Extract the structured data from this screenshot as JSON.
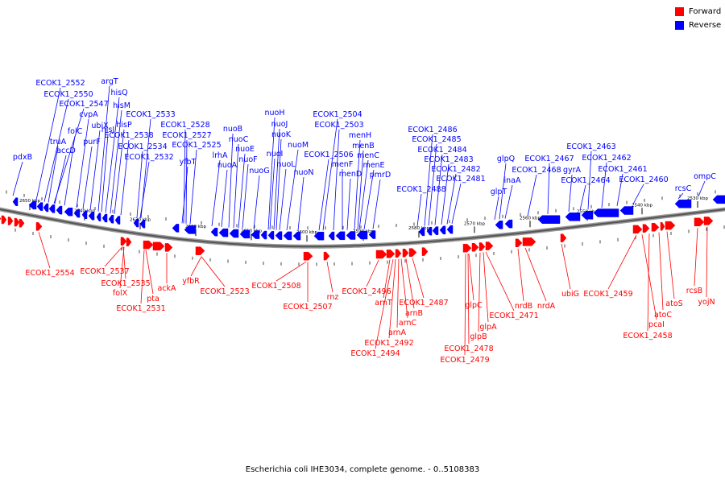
{
  "legend": {
    "forward_label": "Forward",
    "reverse_label": "Reverse",
    "forward_color": "#ff0000",
    "reverse_color": "#0000ff"
  },
  "caption": "Escherichia coli IHE3034, complete genome. - 0..5108383",
  "axis_ticks": [
    "2650 kbp",
    "2640 kbp",
    "2630 kbp",
    "2620 kbp",
    "2610 kbp",
    "2600 kbp",
    "2590 kbp",
    "2580 kbp",
    "2570 kbp",
    "2560 kbp",
    "2550 kbp",
    "2540 kbp",
    "2530 kbp"
  ],
  "reverse_labels": [
    "pdxB",
    "ECOK1_2552",
    "ECOK1_2550",
    "ECOK1_2547",
    "truA",
    "accD",
    "folC",
    "cvpA",
    "purF",
    "ubiX",
    "argT",
    "hisQ",
    "hisM",
    "hisP",
    "hisJ",
    "ECOK1_2538",
    "ECOK1_2534",
    "ECOK1_2533",
    "ECOK1_2532",
    "ECOK1_2528",
    "ECOK1_2527",
    "ECOK1_2525",
    "yfbT",
    "lrhA",
    "nuoA",
    "nuoB",
    "nuoC",
    "nuoE",
    "nuoF",
    "nuoG",
    "nuoH",
    "nuoJ",
    "nuoK",
    "nuoI",
    "nuoL",
    "nuoM",
    "nuoN",
    "ECOK1_2504",
    "ECOK1_2503",
    "ECOK1_2506",
    "menH",
    "menB",
    "menF",
    "menD",
    "menC",
    "menE",
    "pmrD",
    "ECOK1_2486",
    "ECOK1_2485",
    "ECOK1_2484",
    "ECOK1_2483",
    "ECOK1_2482",
    "ECOK1_2481",
    "ECOK1_2488",
    "glpQ",
    "glpT",
    "inaA",
    "ECOK1_2467",
    "ECOK1_2468",
    "gyrA",
    "ECOK1_2464",
    "ECOK1_2463",
    "ECOK1_2462",
    "ECOK1_2461",
    "ECOK1_2460",
    "rcsC",
    "ompC"
  ],
  "forward_labels": [
    "ECOK1_2554",
    "ECOK1_2537",
    "ECOK1_2535",
    "folX",
    "pta",
    "ECOK1_2531",
    "ackA",
    "yfbR",
    "ECOK1_2523",
    "ECOK1_2508",
    "ECOK1_2507",
    "rnz",
    "ECOK1_2496",
    "arnT",
    "ECOK1_2487",
    "arnB",
    "arnC",
    "arnA",
    "ECOK1_2492",
    "ECOK1_2494",
    "glpC",
    "ECOK1_2471",
    "glpA",
    "glpB",
    "ECOK1_2478",
    "ECOK1_2479",
    "nrdB",
    "nrdA",
    "ubiG",
    "ECOK1_2459",
    "pcaI",
    "atoS",
    "atoC",
    "ECOK1_2458",
    "rcsB",
    "yojN"
  ]
}
